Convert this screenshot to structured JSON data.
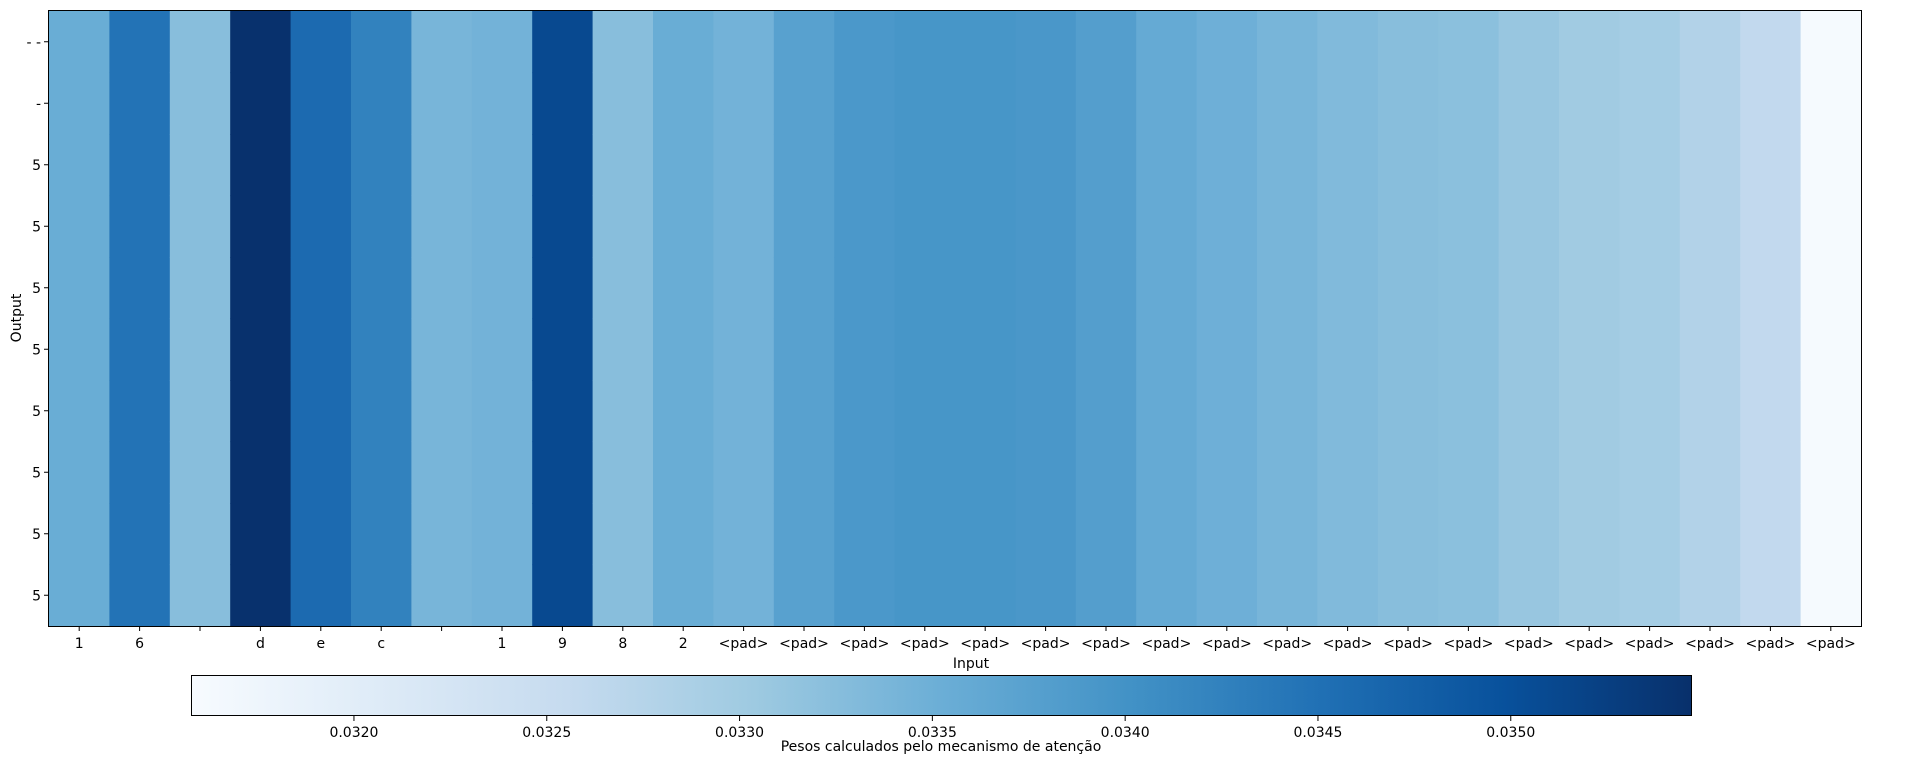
{
  "chart_data": {
    "type": "heatmap",
    "xlabel": "Input",
    "ylabel": "Output",
    "colorbar_label": "Pesos calculados pelo mecanismo de atenção",
    "colormap": "Blues",
    "colorbar_orientation": "horizontal",
    "colorbar_placement": "bottom",
    "x_ticks": [
      "1",
      "6",
      "",
      "d",
      "e",
      "c",
      "",
      "1",
      "9",
      "8",
      "2",
      "<pad>",
      "<pad>",
      "<pad>",
      "<pad>",
      "<pad>",
      "<pad>",
      "<pad>",
      "<pad>",
      "<pad>",
      "<pad>",
      "<pad>",
      "<pad>",
      "<pad>",
      "<pad>",
      "<pad>",
      "<pad>",
      "<pad>",
      "<pad>",
      "<pad>"
    ],
    "y_ticks": [
      "- -",
      "-",
      "5",
      "5",
      "5",
      "5",
      "5",
      "5",
      "5",
      "5"
    ],
    "column_values": [
      0.03355,
      0.03447,
      0.03325,
      0.03545,
      0.0346,
      0.03425,
      0.0334,
      0.03345,
      0.0351,
      0.03325,
      0.03355,
      0.03345,
      0.03375,
      0.0339,
      0.03395,
      0.03395,
      0.03392,
      0.0338,
      0.0336,
      0.0335,
      0.0334,
      0.03332,
      0.03325,
      0.03322,
      0.0331,
      0.033,
      0.03295,
      0.0328,
      0.0326,
      0.03162
    ],
    "colorbar_range": [
      0.03158,
      0.03547
    ],
    "colorbar_ticks": [
      "0.0320",
      "0.0325",
      "0.0330",
      "0.0335",
      "0.0340",
      "0.0345",
      "0.0350"
    ],
    "colorbar_tick_values": [
      0.032,
      0.0325,
      0.033,
      0.0335,
      0.034,
      0.0345,
      0.035
    ],
    "grid": false
  }
}
